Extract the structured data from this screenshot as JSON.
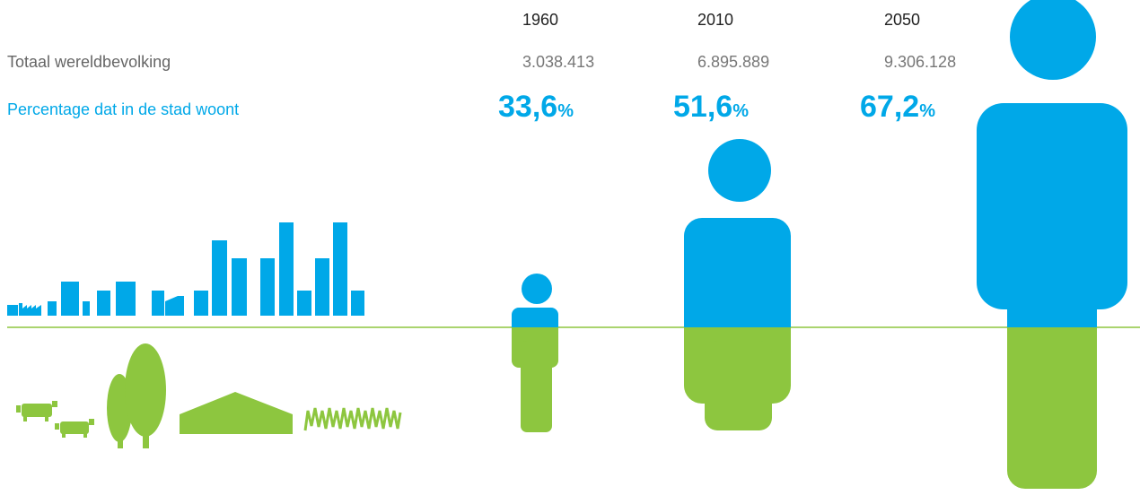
{
  "rows": {
    "total_label": "Totaal wereldbevolking",
    "percentage_label": "Percentage dat in de stad woont"
  },
  "columns": [
    {
      "year": "1960",
      "population": "3.038.413",
      "percentage": "33,6",
      "unit": "%"
    },
    {
      "year": "2010",
      "population": "6.895.889",
      "percentage": "51,6",
      "unit": "%"
    },
    {
      "year": "2050",
      "population": "9.306.128",
      "percentage": "67,2",
      "unit": "%"
    }
  ]
}
